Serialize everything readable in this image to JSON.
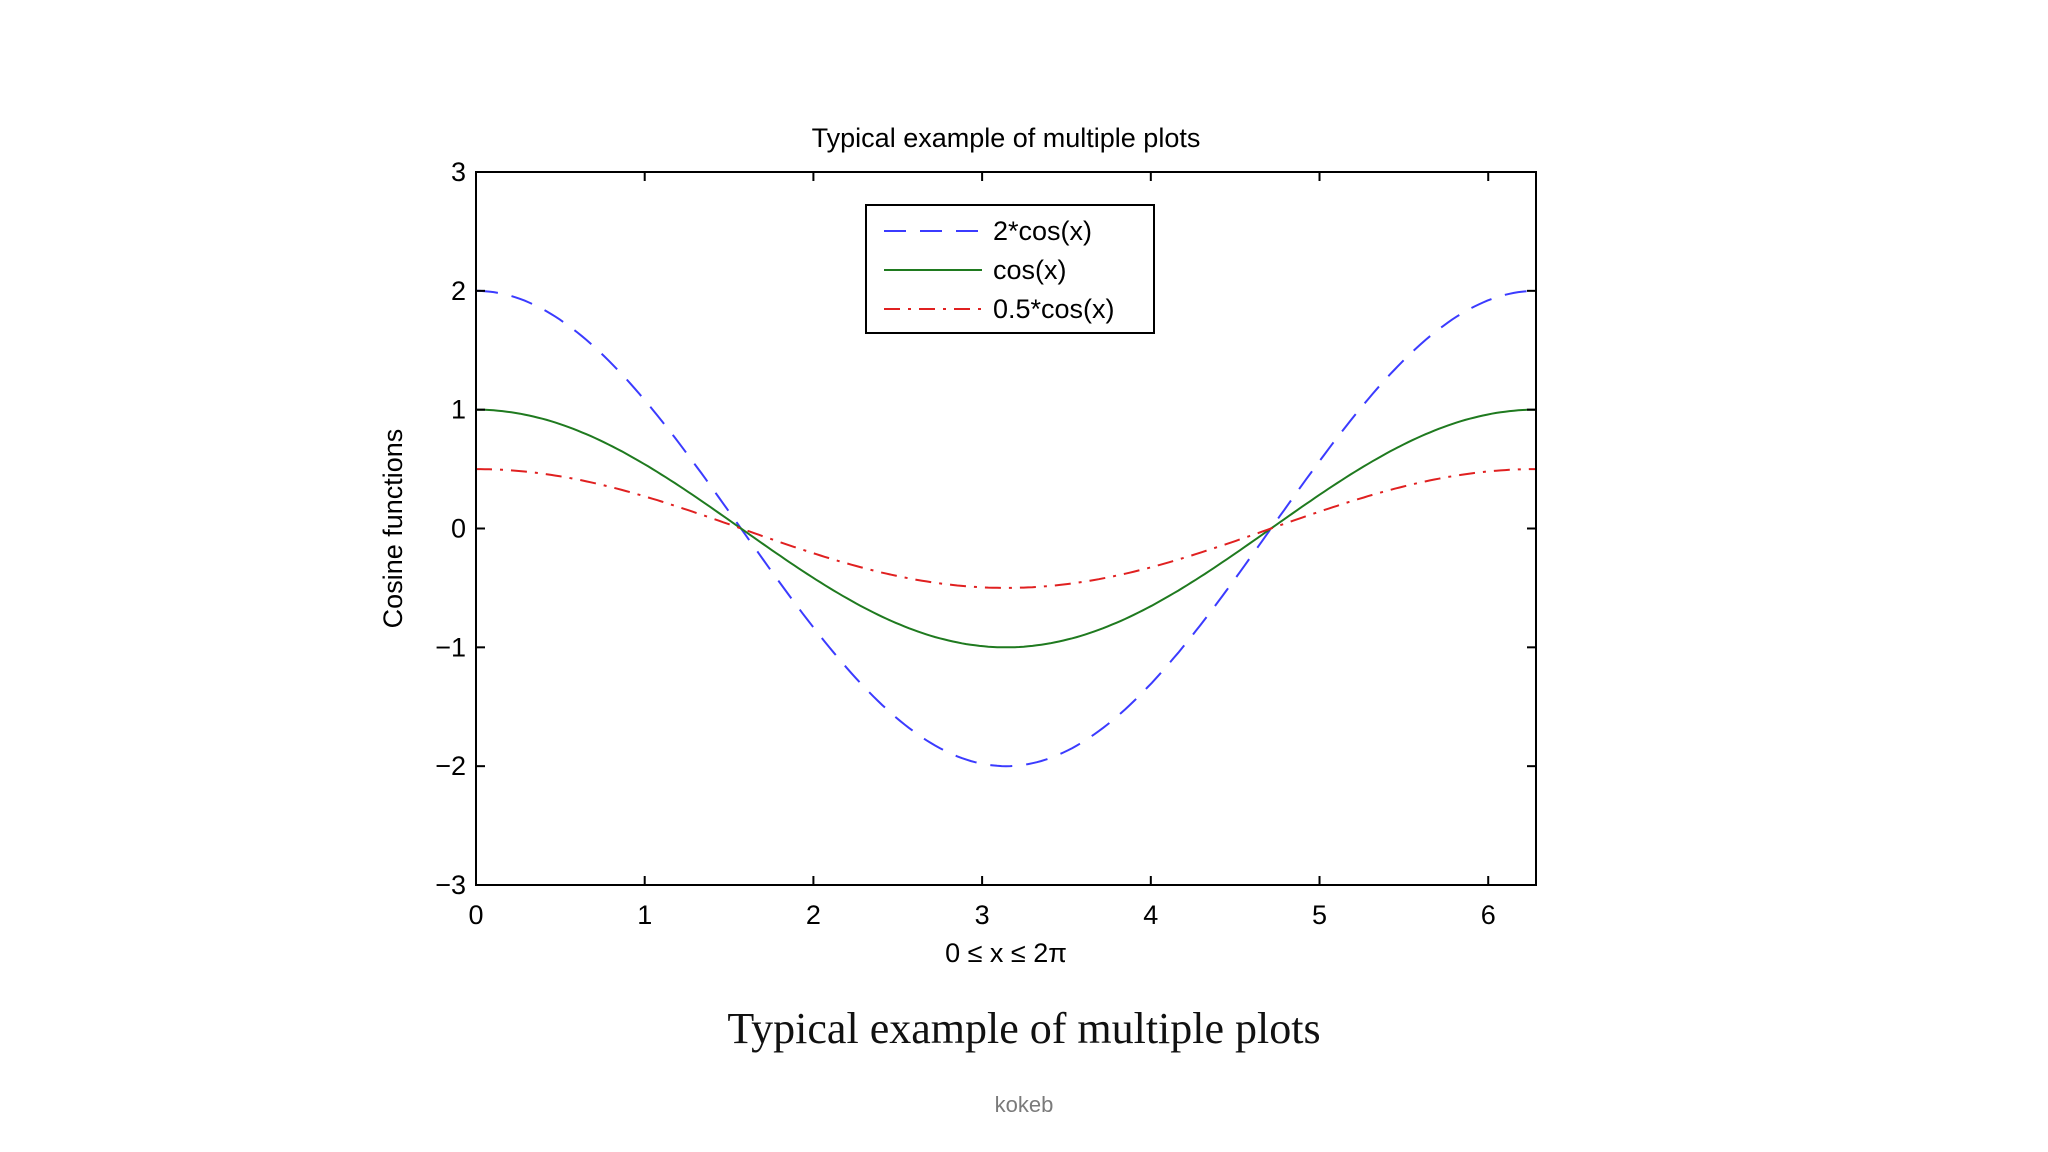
{
  "chart_data": {
    "type": "line",
    "title": "Typical example of multiple plots",
    "xlabel": "0 ≤ x ≤ 2π",
    "ylabel": "Cosine functions",
    "xlim": [
      0,
      6.2832
    ],
    "ylim": [
      -3,
      3
    ],
    "xticks": [
      0,
      1,
      2,
      3,
      4,
      5,
      6
    ],
    "yticks": [
      -3,
      -2,
      -1,
      0,
      1,
      2,
      3
    ],
    "xtick_labels": [
      "0",
      "1",
      "2",
      "3",
      "4",
      "5",
      "6"
    ],
    "ytick_labels": [
      "−3",
      "−2",
      "−1",
      "0",
      "1",
      "2",
      "3"
    ],
    "grid": false,
    "legend_position": "top-center",
    "series": [
      {
        "name": "2*cos(x)",
        "color": "#3b3bff",
        "style": "dashed",
        "x": [
          0,
          0.5,
          1,
          1.5,
          2,
          2.5,
          3,
          3.1416,
          3.5,
          4,
          4.5,
          5,
          5.5,
          6,
          6.2832
        ],
        "y": [
          2,
          1.755,
          1.081,
          0.141,
          -0.832,
          -1.602,
          -1.98,
          -2,
          -1.873,
          -1.307,
          -0.421,
          0.567,
          1.417,
          1.92,
          2
        ]
      },
      {
        "name": "cos(x)",
        "color": "#1f7a1f",
        "style": "solid",
        "x": [
          0,
          0.5,
          1,
          1.5,
          2,
          2.5,
          3,
          3.1416,
          3.5,
          4,
          4.5,
          5,
          5.5,
          6,
          6.2832
        ],
        "y": [
          1,
          0.878,
          0.54,
          0.071,
          -0.416,
          -0.801,
          -0.99,
          -1,
          -0.936,
          -0.654,
          -0.211,
          0.284,
          0.709,
          0.96,
          1
        ]
      },
      {
        "name": "0.5*cos(x)",
        "color": "#e02020",
        "style": "dashdot",
        "x": [
          0,
          0.5,
          1,
          1.5,
          2,
          2.5,
          3,
          3.1416,
          3.5,
          4,
          4.5,
          5,
          5.5,
          6,
          6.2832
        ],
        "y": [
          0.5,
          0.439,
          0.27,
          0.035,
          -0.208,
          -0.401,
          -0.495,
          -0.5,
          -0.468,
          -0.327,
          -0.105,
          0.142,
          0.354,
          0.48,
          0.5
        ]
      }
    ]
  },
  "caption": "Typical example of multiple plots",
  "footer": "kokeb"
}
